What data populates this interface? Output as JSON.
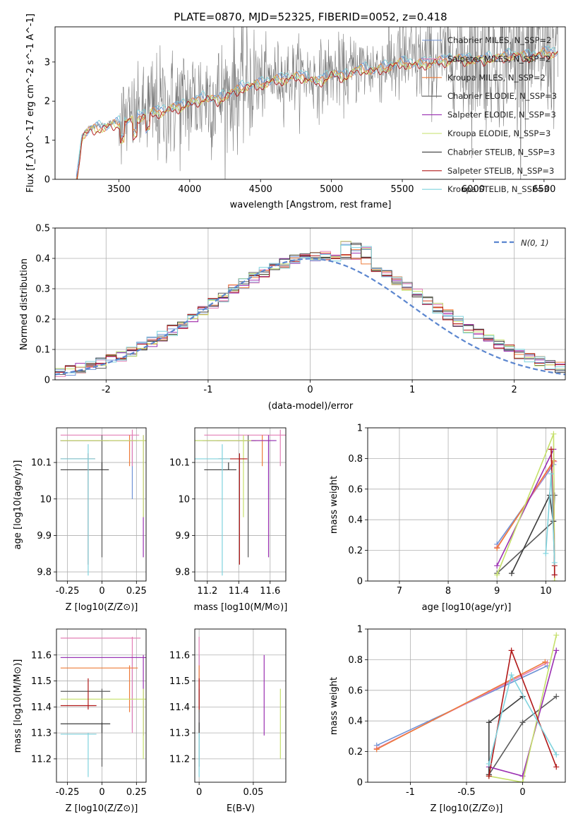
{
  "title": "PLATE=0870, MJD=52325, FIBERID=0052, z=0.418",
  "colors": {
    "chabrier_miles": "#6f93d6",
    "salpeter_miles": "#e37fb6",
    "kroupa_miles": "#ee7b39",
    "chabrier_elodie": "#5a5a5a",
    "salpeter_elodie": "#9b30b2",
    "kroupa_elodie": "#c5e06a",
    "chabrier_stelib": "#3c3c3c",
    "salpeter_stelib": "#b01818",
    "kroupa_stelib": "#7fd3de",
    "normal_curve": "#5b86cf",
    "grid": "#b0b0b0",
    "spectrum": "#7a7a7a"
  },
  "chart_data": [
    {
      "id": "spectrum",
      "type": "line",
      "xlabel": "wavelength [Angstrom, rest frame]",
      "ylabel": "Flux [f_λ10^-17 erg cm^-2 s^-1 A^-1]",
      "xlim": [
        3050,
        6650
      ],
      "ylim": [
        0,
        3.9
      ],
      "xticks": [
        3500,
        4000,
        4500,
        5000,
        5500,
        6000,
        6500
      ],
      "yticks": [
        0,
        1,
        2,
        3
      ],
      "grid": false,
      "legend_position": "top-right",
      "legend": [
        "Chabrier MILES, N_SSP=2",
        "Salpeter MILES, N_SSP=2",
        "Kroupa MILES, N_SSP=2",
        "Chabrier ELODIE, N_SSP=3",
        "Salpeter ELODIE, N_SSP=3",
        "Kroupa ELODIE, N_SSP=3",
        "Chabrier STELIB, N_SSP=3",
        "Salpeter STELIB, N_SSP=3",
        "Kroupa STELIB, N_SSP=3"
      ],
      "model_continuum": {
        "x": [
          3200,
          3220,
          3240,
          3300,
          3400,
          3500,
          3600,
          3700,
          3800,
          3900,
          4000,
          4100,
          4200,
          4300,
          4400,
          4500,
          4600,
          4700,
          4800,
          4900,
          5000,
          5100,
          5200,
          5300,
          5400,
          5500,
          5600,
          5700,
          5800,
          5900,
          6000,
          6100,
          6200,
          6300,
          6400,
          6500,
          6600
        ],
        "y": [
          0,
          0.5,
          1.15,
          1.35,
          1.4,
          1.5,
          1.6,
          1.75,
          1.8,
          1.9,
          2.0,
          2.15,
          2.1,
          2.3,
          2.45,
          2.5,
          2.6,
          2.65,
          2.7,
          2.55,
          2.75,
          2.7,
          2.9,
          2.85,
          2.95,
          3.05,
          3.0,
          3.05,
          3.1,
          3.15,
          3.1,
          3.15,
          3.2,
          3.25,
          3.2,
          3.3,
          3.3
        ]
      }
    },
    {
      "id": "residual_histogram",
      "type": "step",
      "xlabel": "(data-model)/error",
      "ylabel": "Normed distribution",
      "xlim": [
        -2.5,
        2.5
      ],
      "ylim": [
        0,
        0.5
      ],
      "xticks": [
        -2,
        -1,
        0,
        1,
        2
      ],
      "yticks": [
        0.0,
        0.1,
        0.2,
        0.3,
        0.4,
        0.5
      ],
      "grid": true,
      "legend_position": "top-right",
      "reference_curve": "N(0, 1)",
      "bin_width": 0.1
    },
    {
      "id": "age_vs_z",
      "type": "errorbar",
      "xlabel": "Z [log10(Z/Z⊙)]",
      "ylabel": "age  [log10(age/yr)]",
      "xlim": [
        -0.33,
        0.32
      ],
      "ylim": [
        9.775,
        10.195
      ],
      "xticks": [
        -0.25,
        0.0,
        0.25
      ],
      "yticks": [
        9.8,
        9.9,
        10.0,
        10.1
      ],
      "grid": true
    },
    {
      "id": "age_vs_mass",
      "type": "errorbar",
      "xlabel": "mass [log10(M/M⊙)]",
      "xlim": [
        11.12,
        11.7
      ],
      "ylim": [
        9.775,
        10.195
      ],
      "xticks": [
        11.2,
        11.4,
        11.6
      ],
      "yticks": [
        9.8,
        9.9,
        10.0,
        10.1
      ],
      "grid": true
    },
    {
      "id": "weight_vs_age",
      "type": "line",
      "xlabel": "age  [log10(age/yr)]",
      "ylabel": "mass weight",
      "xlim": [
        6.35,
        10.4
      ],
      "ylim": [
        0,
        1
      ],
      "xticks": [
        7,
        8,
        9,
        10
      ],
      "yticks": [
        0.0,
        0.2,
        0.4,
        0.6,
        0.8,
        1.0
      ],
      "grid": true
    },
    {
      "id": "mass_vs_z",
      "type": "errorbar",
      "xlabel": "Z [log10(Z/Z⊙)]",
      "ylabel": "mass [log10(M/M⊙)]",
      "xlim": [
        -0.33,
        0.32
      ],
      "ylim": [
        11.11,
        11.7
      ],
      "xticks": [
        -0.25,
        0.0,
        0.25
      ],
      "yticks": [
        11.2,
        11.3,
        11.4,
        11.5,
        11.6
      ],
      "grid": true
    },
    {
      "id": "mass_vs_ebv",
      "type": "errorbar",
      "xlabel": "E(B-V)",
      "xlim": [
        -0.004,
        0.08
      ],
      "ylim": [
        11.11,
        11.7
      ],
      "xticks": [
        0.0,
        0.05
      ],
      "yticks": [
        11.2,
        11.3,
        11.4,
        11.5,
        11.6
      ],
      "grid": true
    },
    {
      "id": "weight_vs_z",
      "type": "line",
      "xlabel": "Z [log10(Z/Z⊙)]",
      "ylabel": "mass weight",
      "xlim": [
        -1.38,
        0.38
      ],
      "ylim": [
        0,
        1
      ],
      "xticks": [
        -1.0,
        -0.5,
        0.0
      ],
      "yticks": [
        0.0,
        0.2,
        0.4,
        0.6,
        0.8,
        1.0
      ],
      "grid": true
    }
  ],
  "models": [
    {
      "name": "Chabrier MILES",
      "color": "#6f93d6",
      "age": [
        10.16,
        9.0
      ],
      "age_lo": [
        10.0,
        9.0
      ],
      "age_hi": [
        10.165,
        9.0
      ],
      "z": [
        0.22,
        -1.3
      ],
      "mass": [
        11.59,
        11.59
      ],
      "mass_lo": [
        11.31,
        11.31
      ],
      "mass_hi": [
        11.6,
        11.6
      ],
      "weight": [
        0.76,
        0.24
      ],
      "ebv": 0.0
    },
    {
      "name": "Salpeter MILES",
      "color": "#e37fb6",
      "age": [
        10.175,
        9.0
      ],
      "age_lo": [
        10.09,
        9.0
      ],
      "age_hi": [
        10.18,
        9.0
      ],
      "z": [
        0.22,
        -1.3
      ],
      "mass": [
        11.665,
        11.665
      ],
      "mass_lo": [
        11.3,
        11.3
      ],
      "mass_hi": [
        11.67,
        11.67
      ],
      "weight": [
        0.78,
        0.22
      ],
      "ebv": 0.0
    },
    {
      "name": "Kroupa MILES",
      "color": "#ee7b39",
      "age": [
        10.16,
        9.0
      ],
      "age_lo": [
        10.09,
        9.0
      ],
      "age_hi": [
        10.165,
        9.0
      ],
      "z": [
        0.2,
        -1.3
      ],
      "mass": [
        11.55,
        11.55
      ],
      "mass_lo": [
        11.38,
        11.38
      ],
      "mass_hi": [
        11.56,
        11.56
      ],
      "weight": [
        0.785,
        0.215
      ],
      "ebv": 0.0
    },
    {
      "name": "Chabrier ELODIE",
      "color": "#5a5a5a",
      "age": [
        10.16,
        9.0,
        10.18
      ],
      "age_lo": [
        9.84,
        9.0,
        10.1
      ],
      "age_hi": [
        10.165,
        9.0,
        10.185
      ],
      "z": [
        0.0,
        -0.3,
        0.3
      ],
      "mass": [
        11.46,
        11.46,
        11.46
      ],
      "mass_lo": [
        11.17,
        11.17,
        11.17
      ],
      "mass_hi": [
        11.47,
        11.47,
        11.47
      ],
      "weight": [
        0.39,
        0.05,
        0.56
      ],
      "ebv": 0.0
    },
    {
      "name": "Salpeter ELODIE",
      "color": "#9b30b2",
      "age": [
        10.16,
        9.0,
        10.18
      ],
      "age_lo": [
        9.84,
        9.0,
        10.1
      ],
      "age_hi": [
        10.165,
        9.0,
        10.185
      ],
      "z": [
        0.3,
        -0.3,
        0.0
      ],
      "mass": [
        11.59,
        11.59,
        11.59
      ],
      "mass_lo": [
        11.29,
        11.29,
        11.29
      ],
      "mass_hi": [
        11.6,
        11.6,
        11.6
      ],
      "weight": [
        0.86,
        0.1,
        0.04
      ],
      "ebv": 0.06
    },
    {
      "name": "Kroupa ELODIE",
      "color": "#c5e06a",
      "age": [
        10.16,
        9.0,
        10.18
      ],
      "age_lo": [
        9.95,
        9.0,
        10.1
      ],
      "age_hi": [
        10.165,
        9.0,
        10.185
      ],
      "z": [
        0.3,
        -0.3,
        0.0
      ],
      "mass": [
        11.43,
        11.43,
        11.43
      ],
      "mass_lo": [
        11.2,
        11.2,
        11.2
      ],
      "mass_hi": [
        11.47,
        11.47,
        11.47
      ],
      "weight": [
        0.96,
        0.04,
        0.0
      ],
      "ebv": 0.075
    },
    {
      "name": "Chabrier STELIB",
      "color": "#3c3c3c",
      "age": [
        10.08,
        9.3,
        10.15
      ],
      "age_lo": [
        10.08,
        9.3,
        10.1
      ],
      "age_hi": [
        10.09,
        9.3,
        10.155
      ],
      "z": [
        0.0,
        -0.3,
        -0.3
      ],
      "mass": [
        11.335,
        11.335,
        11.335
      ],
      "mass_lo": [
        11.3,
        11.3,
        11.3
      ],
      "mass_hi": [
        11.34,
        11.34,
        11.34
      ],
      "weight": [
        0.56,
        0.05,
        0.39
      ],
      "ebv": 0.0
    },
    {
      "name": "Salpeter STELIB",
      "color": "#b01818",
      "age": [
        10.11,
        10.18,
        10.18
      ],
      "age_lo": [
        9.82,
        10.1,
        10.1
      ],
      "age_hi": [
        10.115,
        10.185,
        10.185
      ],
      "z": [
        -0.1,
        0.3,
        -0.3
      ],
      "mass": [
        11.405,
        11.405,
        11.405
      ],
      "mass_lo": [
        11.39,
        11.39,
        11.39
      ],
      "mass_hi": [
        11.51,
        11.51,
        11.51
      ],
      "weight": [
        0.86,
        0.1,
        0.04
      ],
      "ebv": 0.0
    },
    {
      "name": "Kroupa STELIB",
      "color": "#7fd3de",
      "age": [
        10.11,
        10.0,
        10.18
      ],
      "age_lo": [
        9.79,
        9.95,
        10.1
      ],
      "age_hi": [
        10.14,
        10.0,
        10.185
      ],
      "z": [
        -0.1,
        0.3,
        -0.3
      ],
      "mass": [
        11.295,
        11.295,
        11.295
      ],
      "mass_lo": [
        11.13,
        11.13,
        11.13
      ],
      "mass_hi": [
        11.3,
        11.3,
        11.3
      ],
      "weight": [
        0.7,
        0.18,
        0.12
      ],
      "ebv": 0.0
    }
  ]
}
